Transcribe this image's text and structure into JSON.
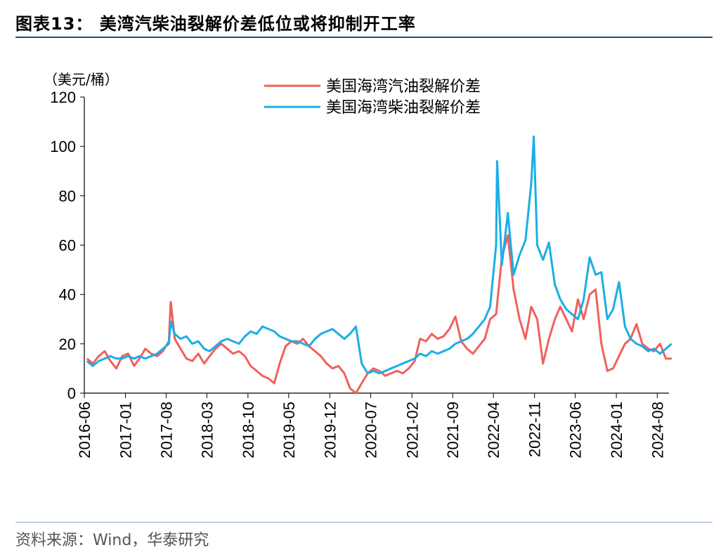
{
  "figure": {
    "title": "图表13：  美湾汽柴油裂解价差低位或将抑制开工率",
    "source": "资料来源：Wind，华泰研究"
  },
  "chart_data": {
    "type": "line",
    "ylabel": "（美元/桶）",
    "ylim": [
      0,
      120
    ],
    "yticks": [
      0,
      20,
      40,
      60,
      80,
      100,
      120
    ],
    "xlim": [
      "2016-06",
      "2024-10"
    ],
    "xticks": [
      "2016-06",
      "2017-01",
      "2017-08",
      "2018-03",
      "2018-10",
      "2019-05",
      "2019-12",
      "2020-07",
      "2021-02",
      "2021-09",
      "2022-04",
      "2022-11",
      "2023-06",
      "2024-01",
      "2024-08"
    ],
    "legend_position": "top-center",
    "grid": false,
    "series": [
      {
        "name": "美国海湾汽油裂解价差",
        "color": "#f0605d",
        "points": [
          [
            "2016-06",
            14
          ],
          [
            "2016-07",
            12
          ],
          [
            "2016-08",
            15
          ],
          [
            "2016-09",
            17
          ],
          [
            "2016-10",
            13
          ],
          [
            "2016-11",
            10
          ],
          [
            "2016-12",
            15
          ],
          [
            "2017-01",
            16
          ],
          [
            "2017-02",
            11
          ],
          [
            "2017-03",
            14
          ],
          [
            "2017-04",
            18
          ],
          [
            "2017-05",
            16
          ],
          [
            "2017-06",
            15
          ],
          [
            "2017-07",
            17
          ],
          [
            "2017-08",
            21
          ],
          [
            "2017-08-25",
            37
          ],
          [
            "2017-09",
            22
          ],
          [
            "2017-10",
            18
          ],
          [
            "2017-11",
            14
          ],
          [
            "2017-12",
            13
          ],
          [
            "2018-01",
            16
          ],
          [
            "2018-02",
            12
          ],
          [
            "2018-03",
            15
          ],
          [
            "2018-04",
            18
          ],
          [
            "2018-05",
            20
          ],
          [
            "2018-06",
            18
          ],
          [
            "2018-07",
            16
          ],
          [
            "2018-08",
            17
          ],
          [
            "2018-09",
            15
          ],
          [
            "2018-10",
            11
          ],
          [
            "2018-11",
            9
          ],
          [
            "2018-12",
            7
          ],
          [
            "2019-01",
            6
          ],
          [
            "2019-02",
            4
          ],
          [
            "2019-03",
            12
          ],
          [
            "2019-04",
            19
          ],
          [
            "2019-05",
            21
          ],
          [
            "2019-06",
            20
          ],
          [
            "2019-07",
            22
          ],
          [
            "2019-08",
            19
          ],
          [
            "2019-09",
            17
          ],
          [
            "2019-10",
            15
          ],
          [
            "2019-11",
            12
          ],
          [
            "2019-12",
            10
          ],
          [
            "2020-01",
            11
          ],
          [
            "2020-02",
            8
          ],
          [
            "2020-03",
            2
          ],
          [
            "2020-04",
            0
          ],
          [
            "2020-05",
            4
          ],
          [
            "2020-06",
            8
          ],
          [
            "2020-07",
            10
          ],
          [
            "2020-08",
            9
          ],
          [
            "2020-09",
            7
          ],
          [
            "2020-10",
            8
          ],
          [
            "2020-11",
            9
          ],
          [
            "2020-12",
            8
          ],
          [
            "2021-01",
            10
          ],
          [
            "2021-02",
            13
          ],
          [
            "2021-03",
            22
          ],
          [
            "2021-04",
            21
          ],
          [
            "2021-05",
            24
          ],
          [
            "2021-06",
            22
          ],
          [
            "2021-07",
            23
          ],
          [
            "2021-08",
            26
          ],
          [
            "2021-09",
            31
          ],
          [
            "2021-10",
            21
          ],
          [
            "2021-11",
            18
          ],
          [
            "2021-12",
            16
          ],
          [
            "2022-01",
            19
          ],
          [
            "2022-02",
            22
          ],
          [
            "2022-03",
            30
          ],
          [
            "2022-04",
            32
          ],
          [
            "2022-05",
            55
          ],
          [
            "2022-06",
            64
          ],
          [
            "2022-07",
            42
          ],
          [
            "2022-08",
            30
          ],
          [
            "2022-09",
            22
          ],
          [
            "2022-10",
            35
          ],
          [
            "2022-11",
            30
          ],
          [
            "2022-12",
            12
          ],
          [
            "2023-01",
            22
          ],
          [
            "2023-02",
            30
          ],
          [
            "2023-03",
            35
          ],
          [
            "2023-04",
            30
          ],
          [
            "2023-05",
            25
          ],
          [
            "2023-06",
            38
          ],
          [
            "2023-07",
            30
          ],
          [
            "2023-08",
            40
          ],
          [
            "2023-09",
            42
          ],
          [
            "2023-10",
            20
          ],
          [
            "2023-11",
            9
          ],
          [
            "2023-12",
            10
          ],
          [
            "2024-01",
            15
          ],
          [
            "2024-02",
            20
          ],
          [
            "2024-03",
            22
          ],
          [
            "2024-04",
            28
          ],
          [
            "2024-05",
            20
          ],
          [
            "2024-06",
            18
          ],
          [
            "2024-07",
            17
          ],
          [
            "2024-08",
            20
          ],
          [
            "2024-09",
            14
          ],
          [
            "2024-10",
            14
          ]
        ]
      },
      {
        "name": "美国海湾柴油裂解价差",
        "color": "#1aaee5",
        "points": [
          [
            "2016-06",
            13
          ],
          [
            "2016-07",
            11
          ],
          [
            "2016-08",
            13
          ],
          [
            "2016-09",
            14
          ],
          [
            "2016-10",
            15
          ],
          [
            "2016-11",
            14
          ],
          [
            "2016-12",
            14
          ],
          [
            "2017-01",
            15
          ],
          [
            "2017-02",
            14
          ],
          [
            "2017-03",
            15
          ],
          [
            "2017-04",
            14
          ],
          [
            "2017-05",
            15
          ],
          [
            "2017-06",
            16
          ],
          [
            "2017-07",
            18
          ],
          [
            "2017-08",
            20
          ],
          [
            "2017-08-25",
            29
          ],
          [
            "2017-09",
            24
          ],
          [
            "2017-10",
            22
          ],
          [
            "2017-11",
            23
          ],
          [
            "2017-12",
            20
          ],
          [
            "2018-01",
            21
          ],
          [
            "2018-02",
            18
          ],
          [
            "2018-03",
            17
          ],
          [
            "2018-04",
            19
          ],
          [
            "2018-05",
            21
          ],
          [
            "2018-06",
            22
          ],
          [
            "2018-07",
            21
          ],
          [
            "2018-08",
            20
          ],
          [
            "2018-09",
            23
          ],
          [
            "2018-10",
            25
          ],
          [
            "2018-11",
            24
          ],
          [
            "2018-12",
            27
          ],
          [
            "2019-01",
            26
          ],
          [
            "2019-02",
            25
          ],
          [
            "2019-03",
            23
          ],
          [
            "2019-04",
            22
          ],
          [
            "2019-05",
            21
          ],
          [
            "2019-06",
            21
          ],
          [
            "2019-07",
            20
          ],
          [
            "2019-08",
            19
          ],
          [
            "2019-09",
            22
          ],
          [
            "2019-10",
            24
          ],
          [
            "2019-11",
            25
          ],
          [
            "2019-12",
            26
          ],
          [
            "2020-01",
            24
          ],
          [
            "2020-02",
            22
          ],
          [
            "2020-03",
            24
          ],
          [
            "2020-04",
            27
          ],
          [
            "2020-05",
            12
          ],
          [
            "2020-06",
            8
          ],
          [
            "2020-07",
            9
          ],
          [
            "2020-08",
            8
          ],
          [
            "2020-09",
            9
          ],
          [
            "2020-10",
            10
          ],
          [
            "2020-11",
            11
          ],
          [
            "2020-12",
            12
          ],
          [
            "2021-01",
            13
          ],
          [
            "2021-02",
            14
          ],
          [
            "2021-03",
            16
          ],
          [
            "2021-04",
            15
          ],
          [
            "2021-05",
            17
          ],
          [
            "2021-06",
            16
          ],
          [
            "2021-07",
            17
          ],
          [
            "2021-08",
            18
          ],
          [
            "2021-09",
            20
          ],
          [
            "2021-10",
            21
          ],
          [
            "2021-11",
            22
          ],
          [
            "2021-12",
            24
          ],
          [
            "2022-01",
            27
          ],
          [
            "2022-02",
            30
          ],
          [
            "2022-03",
            35
          ],
          [
            "2022-04",
            60
          ],
          [
            "2022-04-20",
            94
          ],
          [
            "2022-05",
            52
          ],
          [
            "2022-06",
            73
          ],
          [
            "2022-07",
            48
          ],
          [
            "2022-08",
            56
          ],
          [
            "2022-09",
            62
          ],
          [
            "2022-10",
            85
          ],
          [
            "2022-10-28",
            104
          ],
          [
            "2022-11",
            60
          ],
          [
            "2022-12",
            54
          ],
          [
            "2023-01",
            61
          ],
          [
            "2023-02",
            44
          ],
          [
            "2023-03",
            38
          ],
          [
            "2023-04",
            34
          ],
          [
            "2023-05",
            32
          ],
          [
            "2023-06",
            30
          ],
          [
            "2023-07",
            38
          ],
          [
            "2023-08",
            55
          ],
          [
            "2023-09",
            48
          ],
          [
            "2023-10",
            49
          ],
          [
            "2023-11",
            30
          ],
          [
            "2023-12",
            34
          ],
          [
            "2024-01",
            45
          ],
          [
            "2024-02",
            27
          ],
          [
            "2024-03",
            22
          ],
          [
            "2024-04",
            20
          ],
          [
            "2024-05",
            19
          ],
          [
            "2024-06",
            17
          ],
          [
            "2024-07",
            18
          ],
          [
            "2024-08",
            16
          ],
          [
            "2024-09",
            18
          ],
          [
            "2024-10",
            20
          ]
        ]
      }
    ]
  }
}
